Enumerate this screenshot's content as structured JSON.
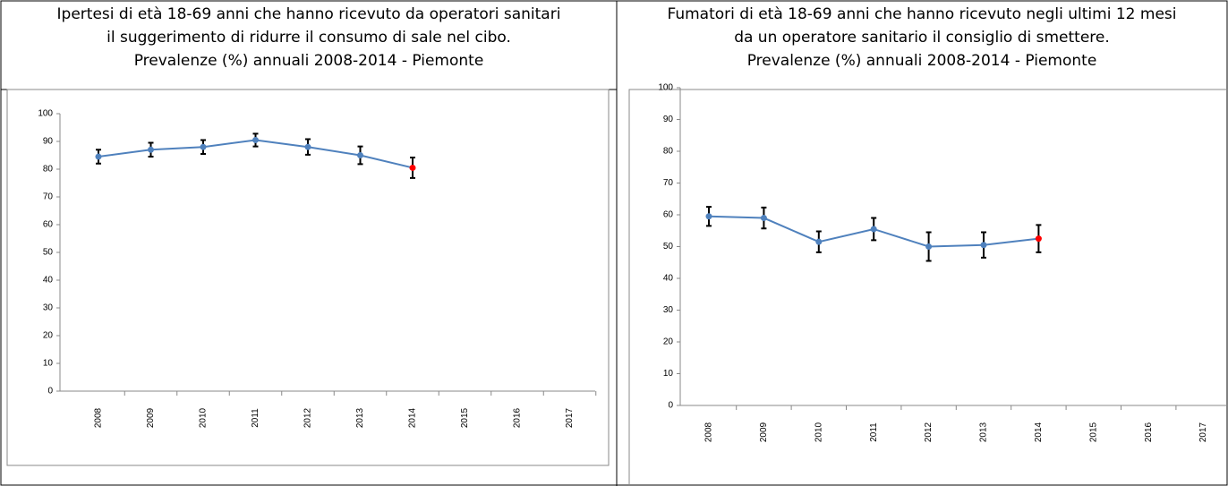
{
  "chart_data": [
    {
      "type": "line",
      "title_lines": [
        "Ipertesi di età 18-69 anni che hanno ricevuto da operatori sanitari",
        "il suggerimento di ridurre il consumo di sale nel cibo.",
        "Prevalenze (%) annuali 2008-2014 - Piemonte"
      ],
      "categories": [
        "2008",
        "2009",
        "2010",
        "2011",
        "2012",
        "2013",
        "2014",
        "2015",
        "2016",
        "2017"
      ],
      "series": [
        {
          "color": "#4f81bd",
          "values": [
            84.5,
            87,
            88,
            90.5,
            88,
            85,
            80.5,
            null,
            null,
            null
          ],
          "errors": [
            2.5,
            2.5,
            2.5,
            2.3,
            2.8,
            3.2,
            3.7,
            null,
            null,
            null
          ],
          "point_colors": [
            "#4f81bd",
            "#4f81bd",
            "#4f81bd",
            "#4f81bd",
            "#4f81bd",
            "#4f81bd",
            "#ff0000",
            null,
            null,
            null
          ]
        }
      ],
      "ylim": [
        0,
        100
      ],
      "yticks": [
        0,
        10,
        20,
        30,
        40,
        50,
        60,
        70,
        80,
        90,
        100
      ]
    },
    {
      "type": "line",
      "title_lines": [
        "Fumatori di età 18-69 anni che hanno ricevuto negli ultimi 12 mesi",
        "da un operatore sanitario il consiglio di smettere.",
        "Prevalenze (%) annuali 2008-2014 - Piemonte"
      ],
      "categories": [
        "2008",
        "2009",
        "2010",
        "2011",
        "2012",
        "2013",
        "2014",
        "2015",
        "2016",
        "2017"
      ],
      "series": [
        {
          "color": "#4f81bd",
          "values": [
            59.5,
            59,
            51.5,
            55.5,
            50,
            50.5,
            52.5,
            null,
            null,
            null
          ],
          "errors": [
            3,
            3.3,
            3.3,
            3.5,
            4.5,
            4,
            4.3,
            null,
            null,
            null
          ],
          "point_colors": [
            "#4f81bd",
            "#4f81bd",
            "#4f81bd",
            "#4f81bd",
            "#4f81bd",
            "#4f81bd",
            "#ff0000",
            null,
            null,
            null
          ]
        }
      ],
      "ylim": [
        0,
        100
      ],
      "yticks": [
        0,
        10,
        20,
        30,
        40,
        50,
        60,
        70,
        80,
        90,
        100
      ]
    }
  ]
}
